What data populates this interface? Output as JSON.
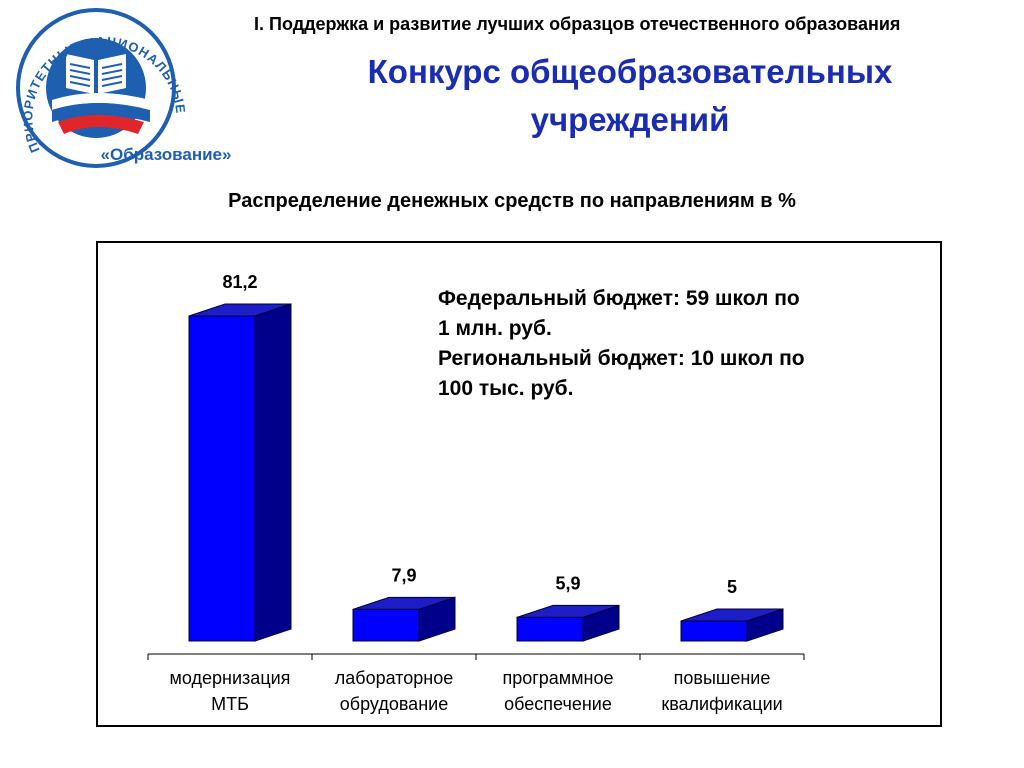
{
  "logo": {
    "arc_text": "ПРИОРИТЕТНЫЕ НАЦИОНАЛЬНЫЕ ПРОЕКТЫ",
    "bottom_text": "«Образование»",
    "colors": {
      "ring": "#1f5fb0",
      "red": "#e0262a",
      "white": "#ffffff"
    }
  },
  "header": {
    "section_line": "I. Поддержка и развитие лучших образцов отечественного образования",
    "title_line1": "Конкурс общеобразовательных",
    "title_line2": "учреждений"
  },
  "subtitle": "Распределение денежных средств по направлениям в %",
  "note": {
    "line1": "Федеральный бюджет:  59 школ по",
    "line2": "1 млн. руб.",
    "line3": "Региональный бюджет:  10 школ по",
    "line4": "100 тыс. руб."
  },
  "chart_data": {
    "type": "bar",
    "title": "Распределение денежных средств по направлениям в %",
    "categories": [
      [
        "модернизация",
        "МТБ"
      ],
      [
        "лабораторное",
        "обрудование"
      ],
      [
        "программное",
        "обеспечение"
      ],
      [
        "повышение",
        "квалификации"
      ]
    ],
    "values": [
      81.2,
      7.9,
      5.9,
      5
    ],
    "value_labels": [
      "81,2",
      "7,9",
      "5,9",
      "5"
    ],
    "ylim": [
      0,
      100
    ],
    "style": "3d-column",
    "colors": {
      "front": "#0000ff",
      "side": "#00008b",
      "top": "#1e1ec8",
      "outline": "#000033"
    }
  }
}
